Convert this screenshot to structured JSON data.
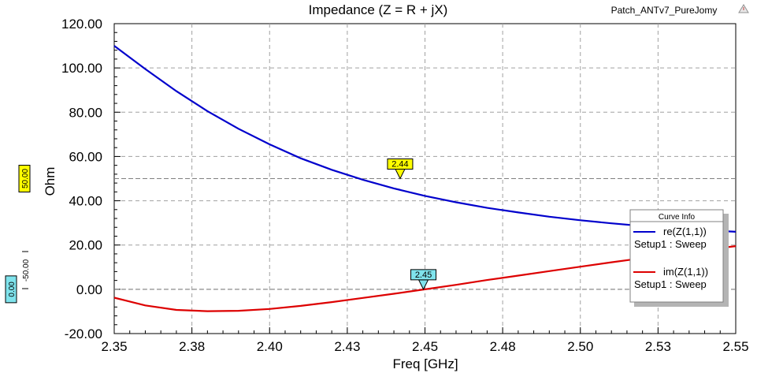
{
  "project_name": "Patch_ANTv7_PureJomy",
  "chart_data": {
    "type": "line",
    "title": "Impedance (Z = R + jX)",
    "xlabel": "Freq [GHz]",
    "ylabel": "Ohm",
    "xlim": [
      2.35,
      2.55
    ],
    "ylim": [
      -20,
      120
    ],
    "x_ticks": [
      "2.35",
      "2.38",
      "2.40",
      "2.43",
      "2.45",
      "2.48",
      "2.50",
      "2.53",
      "2.55"
    ],
    "x_tick_values": [
      2.35,
      2.375,
      2.4,
      2.425,
      2.45,
      2.475,
      2.5,
      2.525,
      2.55
    ],
    "y_ticks": [
      "120.00",
      "100.00",
      "80.00",
      "60.00",
      "40.00",
      "20.00",
      "0.00",
      "-20.00"
    ],
    "y_tick_values": [
      120,
      100,
      80,
      60,
      40,
      20,
      0,
      -20
    ],
    "grid": true,
    "x": [
      2.35,
      2.36,
      2.37,
      2.38,
      2.39,
      2.4,
      2.41,
      2.42,
      2.43,
      2.44,
      2.45,
      2.46,
      2.47,
      2.48,
      2.49,
      2.5,
      2.51,
      2.52,
      2.53,
      2.54,
      2.55
    ],
    "series": [
      {
        "name": "re(Z(1,1))",
        "sub": "Setup1 : Sweep",
        "color": "#0000cc",
        "values": [
          110,
          99.5,
          89.5,
          80.5,
          72.5,
          65.5,
          59.2,
          54.0,
          49.5,
          45.6,
          42.2,
          39.3,
          36.8,
          34.7,
          32.8,
          31.2,
          29.8,
          28.6,
          27.6,
          26.7,
          26.0
        ]
      },
      {
        "name": "im(Z(1,1))",
        "sub": "Setup1 : Sweep",
        "color": "#dd0000",
        "values": [
          -3.8,
          -7.3,
          -9.3,
          -9.9,
          -9.7,
          -8.9,
          -7.5,
          -5.8,
          -3.9,
          -2.0,
          0.0,
          2.0,
          4.2,
          6.2,
          8.2,
          10.2,
          12.2,
          14.1,
          16.0,
          17.8,
          19.5
        ]
      }
    ],
    "markers": [
      {
        "label": "2.44",
        "x": 2.442,
        "y": 50.0,
        "color": "#ffff00"
      },
      {
        "label": "2.45",
        "x": 2.4495,
        "y": 0.0,
        "color": "#7fe3ec"
      }
    ],
    "reference_lines": [
      {
        "y": 50.0,
        "label": "50.00",
        "color": "#ffff00"
      },
      {
        "y": 0.0,
        "label": "0.00",
        "color": "#7fe3ec"
      }
    ],
    "extra_axis_label": "-50.00",
    "legend": {
      "title": "Curve Info",
      "placement": "right"
    }
  }
}
